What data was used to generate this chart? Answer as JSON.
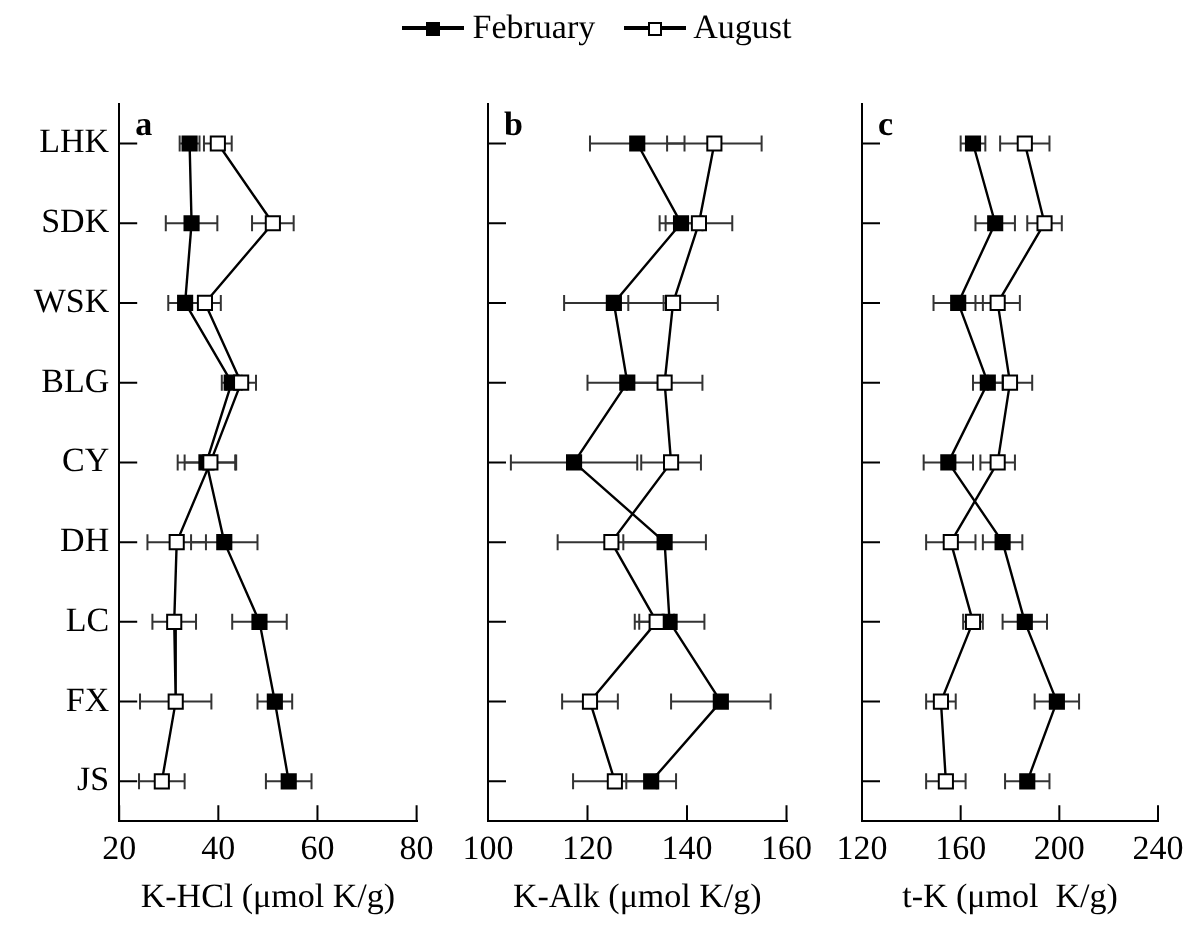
{
  "chart_data": [
    {
      "type": "line",
      "orientation": "horizontal",
      "title": "a",
      "xlabel": "K-HCl (μmol K/g)",
      "categories": [
        "LHK",
        "SDK",
        "WSK",
        "BLG",
        "CY",
        "DH",
        "LC",
        "FX",
        "JS"
      ],
      "xlim": [
        20,
        80
      ],
      "xticks": [
        20,
        40,
        60,
        80
      ],
      "marker": "square",
      "legend": "top",
      "series": [
        {
          "name": "February",
          "color": "#000000",
          "values": [
            34.2,
            34.6,
            33.3,
            42.7,
            37.6,
            41.2,
            48.3,
            51.4,
            54.2
          ],
          "errors": [
            2,
            5.2,
            3.4,
            2,
            5.8,
            6.7,
            5.5,
            3.5,
            4.6
          ]
        },
        {
          "name": "August",
          "color": "#ffffff",
          "values": [
            39.9,
            51,
            37.3,
            44.6,
            38.4,
            31.6,
            31.1,
            31.4,
            28.6
          ],
          "errors": [
            2.8,
            4.2,
            3.2,
            3,
            5.2,
            5.9,
            4.4,
            7.2,
            4.6
          ]
        }
      ]
    },
    {
      "type": "line",
      "orientation": "horizontal",
      "title": "b",
      "xlabel": "K-Alk (μmol K/g)",
      "xlim": [
        100,
        160
      ],
      "xticks": [
        100,
        120,
        140,
        160
      ],
      "marker": "square",
      "tick_labels": "x",
      "series": [
        {
          "color": "#000000",
          "values": [
            130,
            138.8,
            125.3,
            128,
            117.3,
            135.5,
            136.5,
            146.8,
            132.8
          ],
          "errors": [
            9.5,
            4.3,
            10,
            8,
            12.7,
            8.3,
            7,
            10,
            5
          ]
        },
        {
          "color": "#ffffff",
          "values": [
            145.5,
            142.4,
            137.2,
            135.5,
            136.8,
            124.8,
            133.9,
            120.5,
            125.5
          ],
          "errors": [
            9.5,
            6.7,
            9,
            7.6,
            6,
            10.8,
            3.5,
            5.6,
            8.4
          ]
        }
      ]
    },
    {
      "type": "line",
      "orientation": "horizontal",
      "title": "c",
      "xlabel": "t-K (μmol  K/g)",
      "xlim": [
        120,
        240
      ],
      "xticks": [
        120,
        160,
        200,
        240
      ],
      "marker": "square",
      "tick_labels": "x",
      "series": [
        {
          "color": "#000000",
          "values": [
            165,
            174,
            159,
            171,
            155,
            177,
            186,
            199,
            187
          ],
          "errors": [
            5,
            8,
            10,
            6,
            10,
            8,
            9,
            9,
            9
          ]
        },
        {
          "color": "#ffffff",
          "values": [
            186,
            194,
            175,
            180,
            175,
            156,
            165,
            152,
            154
          ],
          "errors": [
            10,
            7,
            9,
            9,
            7,
            10,
            4,
            6,
            8
          ]
        }
      ]
    }
  ]
}
